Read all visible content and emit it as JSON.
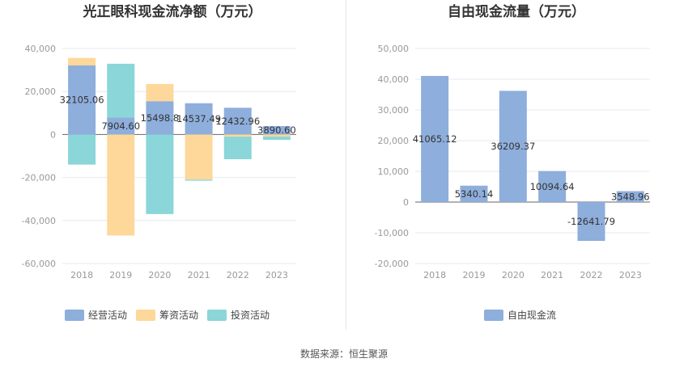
{
  "source": "数据来源：恒生聚源",
  "colors": {
    "operating": "#8eaedc",
    "financing": "#fdd89a",
    "investing": "#8ad6d9",
    "fcf": "#8eaedc",
    "grid": "#e6e9f2",
    "axis_text": "#999999",
    "label_text": "#333333"
  },
  "chart_data": [
    {
      "type": "bar",
      "stacked": true,
      "title": "光正眼科现金流净额（万元）",
      "categories": [
        "2018",
        "2019",
        "2020",
        "2021",
        "2022",
        "2023"
      ],
      "ylim": [
        -60000,
        40000
      ],
      "yticks": [
        40000,
        20000,
        0,
        -20000,
        -40000,
        -60000
      ],
      "ytick_labels": [
        "40,000",
        "20,000",
        "0",
        "-20,000",
        "-40,000",
        "-60,000"
      ],
      "grid": true,
      "legend_position": "bottom",
      "series": [
        {
          "name": "经营活动",
          "color_key": "operating",
          "values": [
            32105.06,
            7904.6,
            15498.8,
            14537.49,
            12432.96,
            3890.6
          ],
          "labels": [
            "32105.06",
            "7904.60",
            "15498.8",
            "14537.49",
            "12432.96",
            "3890.60"
          ]
        },
        {
          "name": "筹资活动",
          "color_key": "financing",
          "values": [
            3500,
            -47000,
            8000,
            -21000,
            -1000,
            -1000
          ],
          "labels": []
        },
        {
          "name": "投资活动",
          "color_key": "investing",
          "values": [
            -14000,
            25000,
            -37000,
            -500,
            -10500,
            -1500
          ],
          "labels": []
        }
      ]
    },
    {
      "type": "bar",
      "stacked": false,
      "title": "自由现金流量（万元）",
      "categories": [
        "2018",
        "2019",
        "2020",
        "2021",
        "2022",
        "2023"
      ],
      "ylim": [
        -20000,
        50000
      ],
      "yticks": [
        50000,
        40000,
        30000,
        20000,
        10000,
        0,
        -10000,
        -20000
      ],
      "ytick_labels": [
        "50,000",
        "40,000",
        "30,000",
        "20,000",
        "10,000",
        "0",
        "-10,000",
        "-20,000"
      ],
      "grid": true,
      "legend_position": "bottom",
      "series": [
        {
          "name": "自由现金流",
          "color_key": "fcf",
          "values": [
            41065.12,
            5340.14,
            36209.37,
            10094.64,
            -12641.79,
            3548.96
          ],
          "labels": [
            "41065.12",
            "5340.14",
            "36209.37",
            "10094.64",
            "-12641.79",
            "3548.96"
          ]
        }
      ]
    }
  ]
}
